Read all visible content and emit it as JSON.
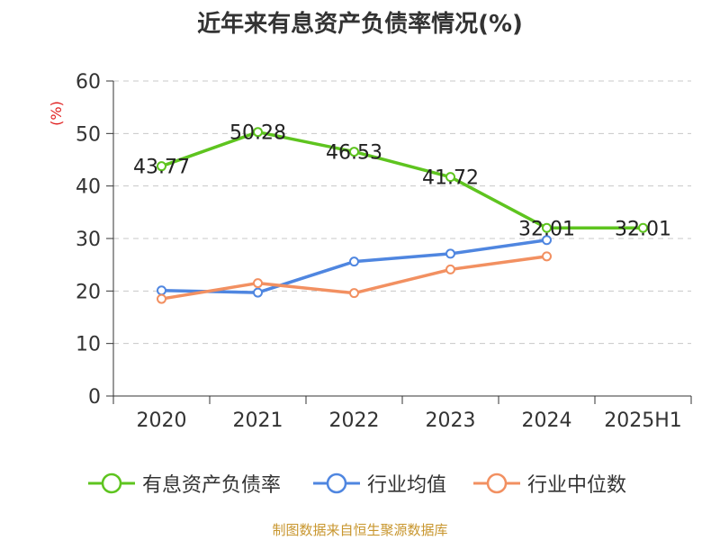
{
  "title": "近年来有息资产负债率情况(%)",
  "source": "制图数据来自恒生聚源数据库",
  "chart_data": {
    "type": "line",
    "title": "近年来有息资产负债率情况(%)",
    "ylabel": "(%)",
    "categories": [
      "2020",
      "2021",
      "2022",
      "2023",
      "2024",
      "2025H1"
    ],
    "ylim": [
      0,
      60
    ],
    "yticks": [
      0,
      10,
      20,
      30,
      40,
      50,
      60
    ],
    "grid": true,
    "legend_position": "bottom",
    "series": [
      {
        "name": "有息资产负债率",
        "color": "#5ec41f",
        "values": [
          43.77,
          50.28,
          46.53,
          41.72,
          32.01,
          32.01
        ],
        "labels": [
          "43.77",
          "50.28",
          "46.53",
          "41.72",
          "32.01",
          "32.01"
        ]
      },
      {
        "name": "行业均值",
        "color": "#4f86e0",
        "values": [
          20.1,
          19.7,
          25.6,
          27.1,
          29.7,
          null
        ]
      },
      {
        "name": "行业中位数",
        "color": "#f29061",
        "values": [
          18.5,
          21.5,
          19.6,
          24.1,
          26.6,
          null
        ]
      }
    ]
  }
}
